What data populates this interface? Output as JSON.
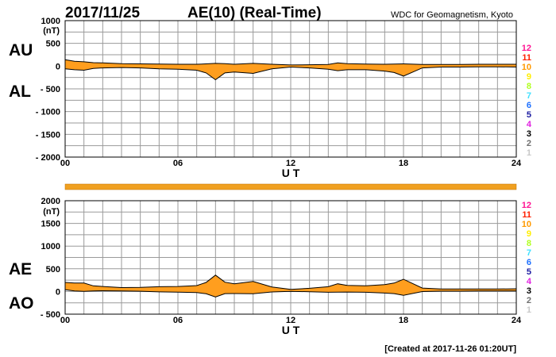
{
  "header": {
    "date": "2017/11/25",
    "title": "AE(10) (Real-Time)",
    "source": "WDC for Geomagnetism, Kyoto"
  },
  "footer": {
    "created": "[Created at 2017-11-26 01:20UT]"
  },
  "colors": {
    "fill": "#ff9e1e",
    "line": "#000000",
    "grid": "#9a9a9a",
    "coverage_bar": "#f0a020"
  },
  "station_legend": [
    {
      "label": "12",
      "color": "#ff1493"
    },
    {
      "label": "11",
      "color": "#ff2000"
    },
    {
      "label": "10",
      "color": "#ff9900"
    },
    {
      "label": "9",
      "color": "#ffee00"
    },
    {
      "label": "8",
      "color": "#b0ff20"
    },
    {
      "label": "7",
      "color": "#40e0ff"
    },
    {
      "label": "6",
      "color": "#1e70ff"
    },
    {
      "label": "5",
      "color": "#1a1aa0"
    },
    {
      "label": "4",
      "color": "#e020e0"
    },
    {
      "label": "3",
      "color": "#000000"
    },
    {
      "label": "2",
      "color": "#707070"
    },
    {
      "label": "1",
      "color": "#c8c8c8"
    }
  ],
  "chart_data": [
    {
      "type": "area",
      "title": "AU / AL",
      "ylabel_upper": "AU",
      "ylabel_lower": "AL",
      "unit": "(nT)",
      "xlabel": "U T",
      "xlim": [
        0,
        24
      ],
      "ylim": [
        -2000,
        1000
      ],
      "x_ticks": [
        "00",
        "06",
        "12",
        "18",
        "24"
      ],
      "x_tick_values": [
        0,
        6,
        12,
        18,
        24
      ],
      "y_ticks": [
        "1000",
        "500",
        "0",
        "- 500",
        "- 1000",
        "- 1500",
        "- 2000"
      ],
      "y_tick_values": [
        1000,
        500,
        0,
        -500,
        -1000,
        -1500,
        -2000
      ],
      "grid": true,
      "series": [
        {
          "name": "AU",
          "x": [
            0,
            0.5,
            1,
            1.5,
            2,
            3,
            4,
            5,
            6,
            7,
            7.5,
            8,
            8.5,
            9,
            10,
            11,
            12,
            13,
            14,
            14.5,
            15,
            16,
            17,
            17.5,
            18,
            19,
            20,
            21,
            22,
            23,
            24
          ],
          "y": [
            140,
            105,
            95,
            75,
            70,
            55,
            50,
            45,
            40,
            40,
            50,
            60,
            55,
            40,
            60,
            40,
            25,
            30,
            35,
            70,
            55,
            45,
            40,
            45,
            50,
            35,
            35,
            35,
            40,
            40,
            40
          ]
        },
        {
          "name": "AL",
          "x": [
            0,
            0.5,
            1,
            1.5,
            2,
            3,
            4,
            5,
            6,
            7,
            7.5,
            8,
            8.5,
            9,
            10,
            11,
            12,
            13,
            14,
            14.5,
            15,
            16,
            17,
            17.5,
            18,
            19,
            20,
            21,
            22,
            23,
            24
          ],
          "y": [
            -60,
            -80,
            -90,
            -50,
            -40,
            -30,
            -40,
            -60,
            -70,
            -90,
            -150,
            -300,
            -150,
            -130,
            -160,
            -60,
            -20,
            -40,
            -70,
            -100,
            -80,
            -80,
            -110,
            -140,
            -220,
            -40,
            -20,
            -20,
            -15,
            -15,
            -20
          ]
        }
      ]
    },
    {
      "type": "area",
      "title": "AE / AO",
      "ylabel_upper": "AE",
      "ylabel_lower": "AO",
      "unit": "(nT)",
      "xlabel": "U T",
      "xlim": [
        0,
        24
      ],
      "ylim": [
        -500,
        2000
      ],
      "x_ticks": [
        "00",
        "06",
        "12",
        "18",
        "24"
      ],
      "x_tick_values": [
        0,
        6,
        12,
        18,
        24
      ],
      "y_ticks": [
        "2000",
        "1500",
        "1000",
        "500",
        "0",
        "- 500"
      ],
      "y_tick_values": [
        2000,
        1500,
        1000,
        500,
        0,
        -500
      ],
      "grid": true,
      "series": [
        {
          "name": "AE",
          "x": [
            0,
            0.5,
            1,
            1.5,
            2,
            3,
            4,
            5,
            6,
            7,
            7.5,
            8,
            8.5,
            9,
            10,
            11,
            12,
            13,
            14,
            14.5,
            15,
            16,
            17,
            17.5,
            18,
            19,
            20,
            21,
            22,
            23,
            24
          ],
          "y": [
            200,
            185,
            185,
            125,
            110,
            85,
            90,
            105,
            110,
            130,
            200,
            360,
            205,
            170,
            220,
            100,
            45,
            70,
            105,
            170,
            135,
            125,
            150,
            185,
            270,
            75,
            55,
            55,
            55,
            55,
            60
          ]
        },
        {
          "name": "AO",
          "x": [
            0,
            0.5,
            1,
            1.5,
            2,
            3,
            4,
            5,
            6,
            7,
            7.5,
            8,
            8.5,
            9,
            10,
            11,
            12,
            13,
            14,
            14.5,
            15,
            16,
            17,
            17.5,
            18,
            19,
            20,
            21,
            22,
            23,
            24
          ],
          "y": [
            40,
            12,
            2,
            12,
            15,
            12,
            5,
            -8,
            -15,
            -25,
            -50,
            -120,
            -48,
            -45,
            -50,
            -10,
            2,
            -5,
            -18,
            -15,
            -12,
            -18,
            -35,
            -48,
            -85,
            -2,
            7,
            7,
            12,
            12,
            10
          ]
        }
      ]
    }
  ]
}
